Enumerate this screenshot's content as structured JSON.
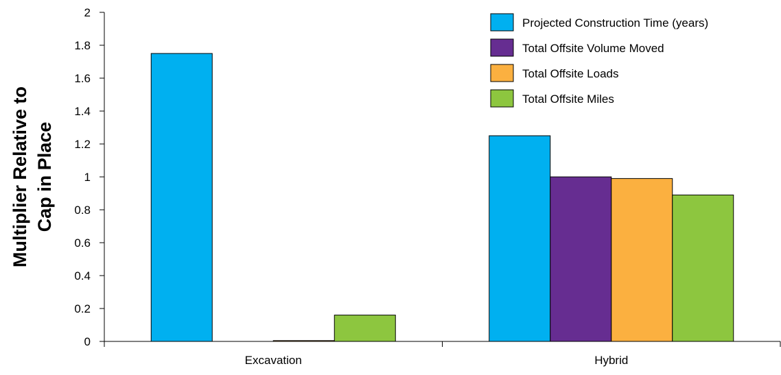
{
  "chart_data": {
    "type": "bar",
    "title": "",
    "xlabel": "",
    "ylabel_lines": [
      "Multiplier Relative to",
      "Cap in Place"
    ],
    "categories": [
      "Excavation",
      "Hybrid"
    ],
    "ylim": [
      0,
      2
    ],
    "yticks": [
      0,
      0.2,
      0.4,
      0.6,
      0.8,
      1,
      1.2,
      1.4,
      1.6,
      1.8,
      2
    ],
    "ytick_labels": [
      "0",
      "0.2",
      "0.4",
      "0.6",
      "0.8",
      "1",
      "1.2",
      "1.4",
      "1.6",
      "1.8",
      "2"
    ],
    "grid": false,
    "legend_position": "top-right",
    "series": [
      {
        "name": "Projected Construction Time (years)",
        "color": "#00b0f0",
        "values": [
          1.75,
          1.25
        ]
      },
      {
        "name": "Total Offsite Volume Moved",
        "color": "#662d91",
        "values": [
          0,
          1.0
        ]
      },
      {
        "name": "Total Offsite Loads",
        "color": "#fbb040",
        "values": [
          0.005,
          0.99
        ]
      },
      {
        "name": "Total Offsite Miles",
        "color": "#8dc63f",
        "values": [
          0.16,
          0.89
        ]
      }
    ]
  }
}
